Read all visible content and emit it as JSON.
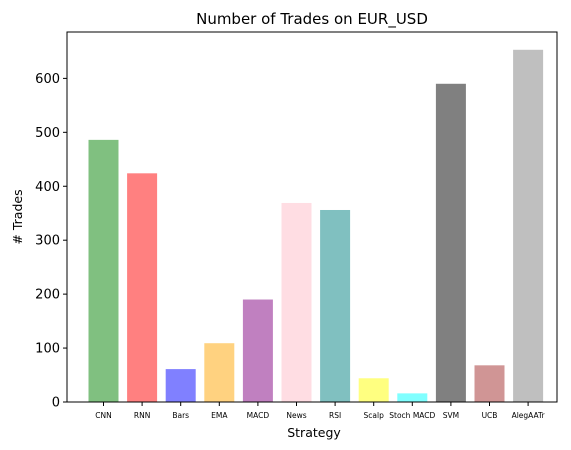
{
  "chart_data": {
    "type": "bar",
    "title": "Number of Trades on EUR_USD",
    "xlabel": "Strategy",
    "ylabel": "# Trades",
    "categories": [
      "CNN",
      "RNN",
      "Bars",
      "EMA",
      "MACD",
      "News",
      "RSI",
      "Scalp",
      "Stoch MACD",
      "SVM",
      "UCB",
      "AlegAATr"
    ],
    "values": [
      486,
      424,
      61,
      109,
      190,
      369,
      356,
      44,
      16,
      590,
      68,
      653
    ],
    "colors": [
      "#80c080",
      "#ff8080",
      "#8080ff",
      "#ffd280",
      "#c080c0",
      "#ffdde3",
      "#80c0c0",
      "#ffff80",
      "#80ffff",
      "#808080",
      "#d09595",
      "#bfbfbf"
    ],
    "yticks": [
      0,
      100,
      200,
      300,
      400,
      500,
      600
    ],
    "ylim": [
      0,
      686
    ],
    "grid": false,
    "legend": "none"
  }
}
